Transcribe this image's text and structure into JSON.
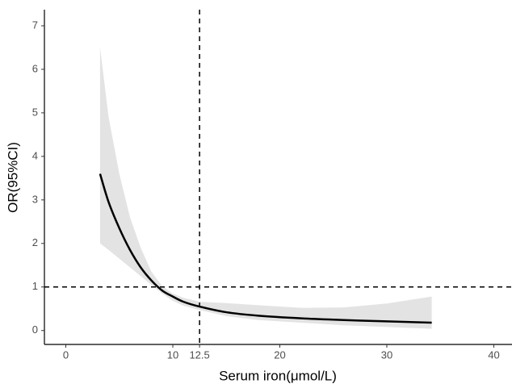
{
  "chart_data": {
    "type": "line",
    "x_label": "Serum iron(μmol/L)",
    "y_label": "OR(95%CI)",
    "x": [
      3.2,
      4,
      5,
      6,
      7,
      8,
      9,
      10,
      11,
      12.5,
      15,
      18,
      22,
      26,
      30,
      34.2
    ],
    "values": [
      3.6,
      2.95,
      2.35,
      1.85,
      1.45,
      1.15,
      0.92,
      0.78,
      0.66,
      0.55,
      0.42,
      0.34,
      0.28,
      0.24,
      0.21,
      0.18
    ],
    "lower": [
      2.0,
      1.85,
      1.65,
      1.45,
      1.25,
      1.05,
      0.85,
      0.68,
      0.57,
      0.47,
      0.33,
      0.24,
      0.18,
      0.12,
      0.08,
      0.04
    ],
    "upper": [
      6.5,
      4.9,
      3.6,
      2.6,
      1.9,
      1.35,
      1.02,
      0.85,
      0.75,
      0.66,
      0.63,
      0.58,
      0.52,
      0.53,
      0.62,
      0.78
    ],
    "color": "#000000",
    "band_color": "#e3e3e3",
    "hlines": [
      1
    ],
    "vlines": [
      12.5
    ],
    "xlim": [
      -2,
      41.7
    ],
    "ylim": [
      -0.32,
      7.37
    ],
    "xticks": [
      0,
      10,
      12.5,
      20,
      30,
      40
    ],
    "yticks": [
      0,
      1,
      2,
      3,
      4,
      5,
      6,
      7
    ],
    "grid": false
  }
}
